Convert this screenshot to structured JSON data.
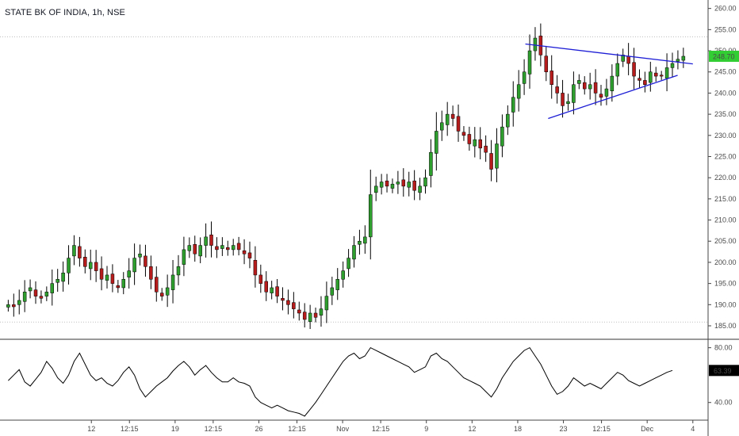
{
  "header": {
    "title": "STATE BK OF INDIA, 1h, NSE"
  },
  "colors": {
    "up": "#26a69a",
    "up_body": "#2e9e2e",
    "down": "#b71c1c",
    "wick": "#000000",
    "trendline": "#1e1ed6",
    "price_badge": "#32cd32",
    "rsi_line": "#000000"
  },
  "chart_data": [
    {
      "type": "candlestick",
      "title": "",
      "xlabel": "",
      "ylabel": "",
      "ylim": [
        182,
        262
      ],
      "y_ticks": [
        "260.00",
        "255.00",
        "250.00",
        "245.00",
        "240.00",
        "235.00",
        "230.00",
        "225.00",
        "220.00",
        "215.00",
        "210.00",
        "205.00",
        "200.00",
        "195.00",
        "190.00",
        "185.00"
      ],
      "x_ticks": [
        {
          "label": "12",
          "x": 12
        },
        {
          "label": "12:15",
          "x": 17
        },
        {
          "label": "19",
          "x": 23
        },
        {
          "label": "12:15",
          "x": 28
        },
        {
          "label": "26",
          "x": 34
        },
        {
          "label": "12:15",
          "x": 39
        },
        {
          "label": "Nov",
          "x": 45
        },
        {
          "label": "12:15",
          "x": 50
        },
        {
          "label": "9",
          "x": 56
        },
        {
          "label": "12",
          "x": 62
        },
        {
          "label": "18",
          "x": 68
        },
        {
          "label": "23",
          "x": 74
        },
        {
          "label": "12:15",
          "x": 79
        },
        {
          "label": "Dec",
          "x": 85
        },
        {
          "label": "4",
          "x": 91
        }
      ],
      "last_price": "248.70",
      "reference_lines": [
        253.3,
        185.9
      ],
      "trendlines": [
        {
          "name": "upper",
          "from": [
            69,
            251.6
          ],
          "to": [
            91,
            246.9
          ]
        },
        {
          "name": "lower",
          "from": [
            72,
            234.0
          ],
          "to": [
            89,
            244.2
          ]
        }
      ],
      "close": [
        190,
        189.5,
        191,
        193,
        194,
        192,
        191.5,
        193,
        195,
        196,
        197.5,
        201,
        204,
        201,
        199,
        200,
        198,
        196,
        197,
        195,
        194,
        196,
        198,
        201,
        202,
        199,
        196,
        193,
        192,
        194,
        197,
        199,
        203,
        204,
        202,
        204,
        206,
        204,
        203,
        204,
        203,
        204,
        203,
        202,
        201,
        197,
        195,
        193,
        194,
        192,
        191,
        190,
        189,
        188,
        186.5,
        188,
        187,
        189,
        192,
        194,
        196,
        198,
        201,
        204,
        205,
        206,
        216,
        218,
        219,
        218,
        218.5,
        219,
        218,
        219,
        217,
        218,
        220,
        226,
        231,
        233,
        235,
        234,
        231,
        230,
        228,
        229,
        227,
        226,
        222,
        228,
        232,
        235,
        239,
        242,
        245,
        250,
        253,
        249,
        245,
        242,
        240,
        237,
        238,
        242,
        243,
        241,
        242,
        240,
        239,
        241,
        244,
        247,
        249,
        247,
        244,
        243,
        242,
        245,
        244,
        244,
        246,
        247,
        248,
        248.7
      ],
      "series": [
        {
          "name": "",
          "type": "rsi",
          "ylim": [
            30,
            85
          ],
          "y_ticks": [
            "80.00",
            "40.00"
          ],
          "last_value": "63.39",
          "values": [
            56,
            60,
            64,
            55,
            52,
            57,
            62,
            70,
            65,
            58,
            54,
            60,
            70,
            76,
            68,
            60,
            56,
            58,
            54,
            52,
            56,
            62,
            66,
            60,
            50,
            44,
            48,
            52,
            55,
            58,
            63,
            67,
            70,
            66,
            60,
            64,
            67,
            62,
            58,
            55,
            55,
            58,
            55,
            54,
            52,
            44,
            40,
            38,
            36,
            38,
            36,
            34,
            33,
            32,
            30,
            35,
            40,
            46,
            52,
            58,
            64,
            70,
            74,
            76,
            72,
            74,
            80,
            78,
            76,
            74,
            72,
            70,
            68,
            66,
            62,
            64,
            66,
            74,
            76,
            72,
            70,
            66,
            62,
            58,
            56,
            54,
            52,
            48,
            44,
            50,
            58,
            64,
            70,
            74,
            78,
            80,
            74,
            68,
            60,
            52,
            46,
            48,
            52,
            58,
            55,
            52,
            54,
            52,
            50,
            54,
            58,
            62,
            60,
            56,
            54,
            52,
            54,
            56,
            58,
            60,
            62,
            63.39
          ]
        }
      ]
    }
  ]
}
